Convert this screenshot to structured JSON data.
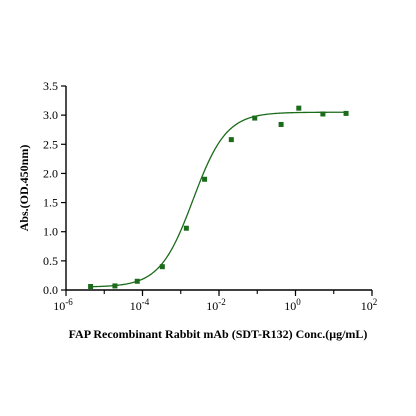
{
  "chart_data": {
    "type": "scatter",
    "title": "",
    "xlabel": "FAP Recombinant Rabbit mAb (SDT-R132) Conc.(μg/mL)",
    "ylabel": "Abs.(OD.450nm)",
    "xscale": "log",
    "xlim": [
      1e-06,
      100
    ],
    "ylim": [
      0,
      3.5
    ],
    "x_ticks": [
      {
        "base": "10",
        "exp": "-6"
      },
      {
        "base": "10",
        "exp": "-4"
      },
      {
        "base": "10",
        "exp": "-2"
      },
      {
        "base": "10",
        "exp": "0"
      },
      {
        "base": "10",
        "exp": "2"
      }
    ],
    "y_ticks": [
      "0.0",
      "0.5",
      "1.0",
      "1.5",
      "2.0",
      "2.5",
      "3.0",
      "3.5"
    ],
    "grid": false,
    "legend": "none",
    "series": [
      {
        "color": "#1a6b1a",
        "marker": "square",
        "points": [
          {
            "x": 4.4e-06,
            "y": 0.06
          },
          {
            "x": 1.9e-05,
            "y": 0.07
          },
          {
            "x": 7.3e-05,
            "y": 0.15
          },
          {
            "x": 0.00033,
            "y": 0.4
          },
          {
            "x": 0.0014,
            "y": 1.06
          },
          {
            "x": 0.0042,
            "y": 1.9
          },
          {
            "x": 0.021,
            "y": 2.58
          },
          {
            "x": 0.086,
            "y": 2.95
          },
          {
            "x": 0.42,
            "y": 2.84
          },
          {
            "x": 1.22,
            "y": 3.12
          },
          {
            "x": 5.2,
            "y": 3.02
          },
          {
            "x": 21,
            "y": 3.03
          }
        ],
        "fit": {
          "bottom": 0.05,
          "top": 3.05,
          "ec50": 0.0021,
          "hill": 1.0
        }
      }
    ]
  }
}
